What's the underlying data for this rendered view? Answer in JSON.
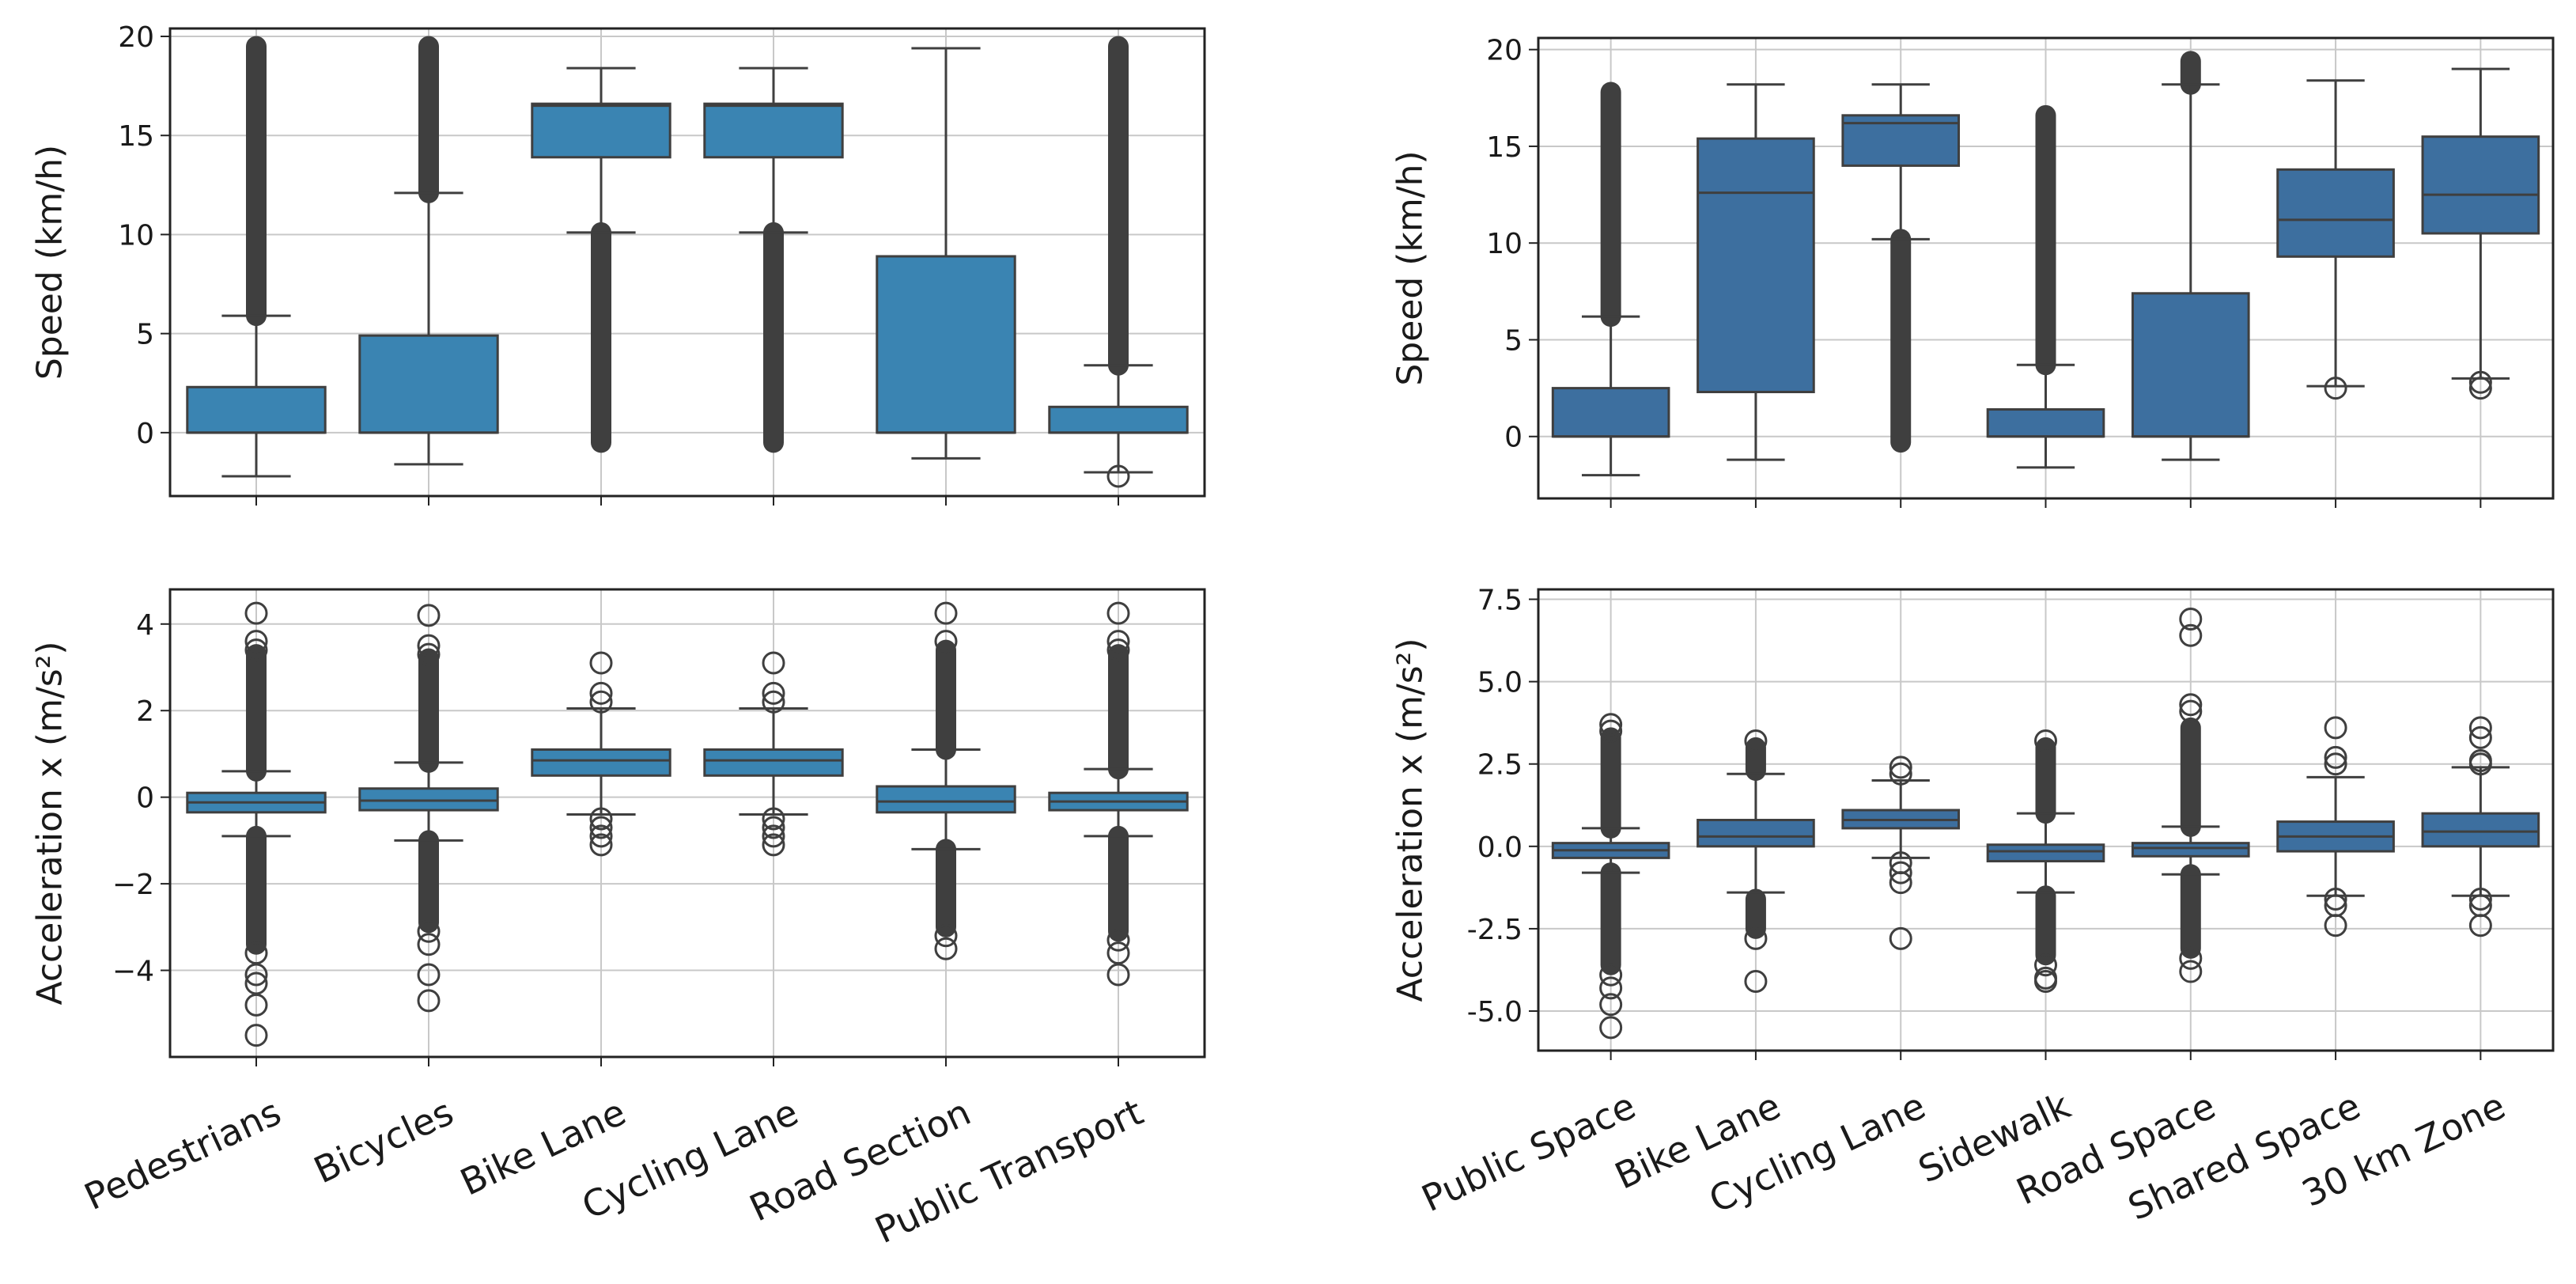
{
  "figure": {
    "box_color_left": "#3a84b2",
    "box_color_right": "#3d6f9f",
    "line_color": "#3f3f3f",
    "grid_color": "#c8c8c8"
  },
  "chart_data": [
    {
      "id": "speed-left",
      "type": "box",
      "ylabel": "Speed (km/h)",
      "ylim": [
        -3.2,
        20.4
      ],
      "yticks": [
        0,
        5,
        10,
        15,
        20
      ],
      "ytick_labels": [
        "0",
        "5",
        "10",
        "15",
        "20"
      ],
      "grid": true,
      "categories": [
        "Pedestrians",
        "Bicycles",
        "Bike Lane",
        "Cycling Lane",
        "Road Section",
        "Public Transport"
      ],
      "boxes": [
        {
          "q1": 0,
          "median": 0,
          "q3": 2.3,
          "whisker_low": -2.2,
          "whisker_high": 5.9,
          "fliers": [],
          "flier_bands": [
            [
              5.9,
              19.5
            ]
          ]
        },
        {
          "q1": 0,
          "median": 0,
          "q3": 4.9,
          "whisker_low": -1.6,
          "whisker_high": 12.1,
          "fliers": [],
          "flier_bands": [
            [
              12.1,
              19.5
            ]
          ]
        },
        {
          "q1": 13.9,
          "median": 16.5,
          "q3": 16.6,
          "whisker_low": 10.1,
          "whisker_high": 18.4,
          "fliers": [],
          "flier_bands": [
            [
              -0.5,
              10.1
            ]
          ]
        },
        {
          "q1": 13.9,
          "median": 16.5,
          "q3": 16.6,
          "whisker_low": 10.1,
          "whisker_high": 18.4,
          "fliers": [],
          "flier_bands": [
            [
              -0.5,
              10.1
            ]
          ]
        },
        {
          "q1": 0,
          "median": 0,
          "q3": 8.9,
          "whisker_low": -1.3,
          "whisker_high": 19.4,
          "fliers": [],
          "flier_bands": []
        },
        {
          "q1": 0,
          "median": 0,
          "q3": 1.3,
          "whisker_low": -2.0,
          "whisker_high": 3.4,
          "fliers": [
            -2.2
          ],
          "flier_bands": [
            [
              3.4,
              19.5
            ]
          ]
        }
      ]
    },
    {
      "id": "accel-left",
      "type": "box",
      "ylabel": "Acceleration x (m/s²)",
      "ylim": [
        -6.0,
        4.8
      ],
      "yticks": [
        -4,
        -2,
        0,
        2,
        4
      ],
      "ytick_labels": [
        "−4",
        "−2",
        "0",
        "2",
        "4"
      ],
      "grid": true,
      "categories": [
        "Pedestrians",
        "Bicycles",
        "Bike Lane",
        "Cycling Lane",
        "Road Section",
        "Public Transport"
      ],
      "boxes": [
        {
          "q1": -0.35,
          "median": -0.12,
          "q3": 0.1,
          "whisker_low": -0.9,
          "whisker_high": 0.6,
          "fliers": [
            4.25,
            3.6,
            3.4,
            -3.6,
            -4.1,
            -4.3,
            -4.8,
            -5.5
          ],
          "flier_bands": [
            [
              0.6,
              3.3
            ],
            [
              -0.9,
              -3.4
            ]
          ]
        },
        {
          "q1": -0.3,
          "median": -0.08,
          "q3": 0.2,
          "whisker_low": -1.0,
          "whisker_high": 0.8,
          "fliers": [
            4.2,
            3.5,
            3.3,
            -3.1,
            -3.4,
            -4.1,
            -4.7
          ],
          "flier_bands": [
            [
              0.8,
              3.2
            ],
            [
              -1.0,
              -2.9
            ]
          ]
        },
        {
          "q1": 0.5,
          "median": 0.85,
          "q3": 1.1,
          "whisker_low": -0.4,
          "whisker_high": 2.05,
          "fliers": [
            3.1,
            2.4,
            2.2,
            -0.5,
            -0.7,
            -0.9,
            -1.1
          ],
          "flier_bands": []
        },
        {
          "q1": 0.5,
          "median": 0.85,
          "q3": 1.1,
          "whisker_low": -0.4,
          "whisker_high": 2.05,
          "fliers": [
            3.1,
            2.4,
            2.2,
            -0.5,
            -0.7,
            -0.9,
            -1.1
          ],
          "flier_bands": []
        },
        {
          "q1": -0.35,
          "median": -0.1,
          "q3": 0.25,
          "whisker_low": -1.2,
          "whisker_high": 1.1,
          "fliers": [
            4.25,
            3.6,
            -3.2,
            -3.5
          ],
          "flier_bands": [
            [
              1.1,
              3.4
            ],
            [
              -1.2,
              -3.0
            ]
          ]
        },
        {
          "q1": -0.3,
          "median": -0.1,
          "q3": 0.1,
          "whisker_low": -0.9,
          "whisker_high": 0.65,
          "fliers": [
            4.25,
            3.6,
            3.4,
            -3.3,
            -3.6,
            -4.1
          ],
          "flier_bands": [
            [
              0.65,
              3.3
            ],
            [
              -0.9,
              -3.1
            ]
          ]
        }
      ]
    },
    {
      "id": "speed-right",
      "type": "box",
      "ylabel": "Speed (km/h)",
      "ylim": [
        -3.2,
        20.6
      ],
      "yticks": [
        0,
        5,
        10,
        15,
        20
      ],
      "ytick_labels": [
        "0",
        "5",
        "10",
        "15",
        "20"
      ],
      "grid": true,
      "categories": [
        "Public Space",
        "Bike Lane",
        "Cycling Lane",
        "Sidewalk",
        "Road Space",
        "Shared Space",
        "30 km Zone"
      ],
      "boxes": [
        {
          "q1": 0,
          "median": 0,
          "q3": 2.5,
          "whisker_low": -2.0,
          "whisker_high": 6.2,
          "fliers": [],
          "flier_bands": [
            [
              6.2,
              17.8
            ]
          ]
        },
        {
          "q1": 2.3,
          "median": 12.6,
          "q3": 15.4,
          "whisker_low": -1.2,
          "whisker_high": 18.2,
          "fliers": [],
          "flier_bands": []
        },
        {
          "q1": 14.0,
          "median": 16.2,
          "q3": 16.6,
          "whisker_low": 10.2,
          "whisker_high": 18.2,
          "fliers": [],
          "flier_bands": [
            [
              -0.3,
              10.2
            ]
          ]
        },
        {
          "q1": 0,
          "median": 0,
          "q3": 1.4,
          "whisker_low": -1.6,
          "whisker_high": 3.7,
          "fliers": [],
          "flier_bands": [
            [
              3.7,
              16.6
            ]
          ]
        },
        {
          "q1": 0,
          "median": 0,
          "q3": 7.4,
          "whisker_low": -1.2,
          "whisker_high": 18.2,
          "fliers": [],
          "flier_bands": [
            [
              18.2,
              19.4
            ]
          ]
        },
        {
          "q1": 9.3,
          "median": 11.2,
          "q3": 13.8,
          "whisker_low": 2.6,
          "whisker_high": 18.4,
          "fliers": [
            2.5
          ],
          "flier_bands": []
        },
        {
          "q1": 10.5,
          "median": 12.5,
          "q3": 15.5,
          "whisker_low": 3.0,
          "whisker_high": 19.0,
          "fliers": [
            2.8,
            2.5
          ],
          "flier_bands": []
        }
      ]
    },
    {
      "id": "accel-right",
      "type": "box",
      "ylabel": "Acceleration x (m/s²)",
      "ylim": [
        -6.2,
        7.8
      ],
      "yticks": [
        -5,
        -2.5,
        0,
        2.5,
        5,
        7.5
      ],
      "ytick_labels": [
        "-5.0",
        "-2.5",
        "0.0",
        "2.5",
        "5.0",
        "7.5"
      ],
      "grid": true,
      "categories": [
        "Public Space",
        "Bike Lane",
        "Cycling Lane",
        "Sidewalk",
        "Road Space",
        "Shared Space",
        "30 km Zone"
      ],
      "boxes": [
        {
          "q1": -0.35,
          "median": -0.12,
          "q3": 0.1,
          "whisker_low": -0.8,
          "whisker_high": 0.55,
          "fliers": [
            3.7,
            3.5,
            -3.9,
            -4.3,
            -4.8,
            -5.5
          ],
          "flier_bands": [
            [
              0.55,
              3.3
            ],
            [
              -0.8,
              -3.6
            ]
          ]
        },
        {
          "q1": 0,
          "median": 0.3,
          "q3": 0.8,
          "whisker_low": -1.4,
          "whisker_high": 2.2,
          "fliers": [
            3.2,
            -2.8,
            -4.1
          ],
          "flier_bands": [
            [
              2.3,
              3.0
            ],
            [
              -1.6,
              -2.5
            ]
          ]
        },
        {
          "q1": 0.55,
          "median": 0.8,
          "q3": 1.1,
          "whisker_low": -0.35,
          "whisker_high": 2.0,
          "fliers": [
            2.4,
            2.2,
            -0.5,
            -0.8,
            -1.1,
            -2.8
          ],
          "flier_bands": []
        },
        {
          "q1": -0.45,
          "median": -0.15,
          "q3": 0.05,
          "whisker_low": -1.4,
          "whisker_high": 1.0,
          "fliers": [
            3.2,
            -3.6,
            -4.0,
            -4.1
          ],
          "flier_bands": [
            [
              1.0,
              3.0
            ],
            [
              -1.5,
              -3.3
            ]
          ]
        },
        {
          "q1": -0.3,
          "median": -0.05,
          "q3": 0.1,
          "whisker_low": -0.85,
          "whisker_high": 0.6,
          "fliers": [
            6.9,
            6.4,
            4.3,
            4.1,
            -3.4,
            -3.8
          ],
          "flier_bands": [
            [
              0.6,
              3.6
            ],
            [
              -0.85,
              -3.1
            ]
          ]
        },
        {
          "q1": -0.15,
          "median": 0.3,
          "q3": 0.75,
          "whisker_low": -1.5,
          "whisker_high": 2.1,
          "fliers": [
            3.6,
            2.7,
            2.5,
            -1.6,
            -1.8,
            -2.4
          ],
          "flier_bands": []
        },
        {
          "q1": 0,
          "median": 0.45,
          "q3": 1.0,
          "whisker_low": -1.5,
          "whisker_high": 2.4,
          "fliers": [
            3.6,
            3.3,
            2.6,
            2.5,
            -1.6,
            -1.8,
            -2.4
          ],
          "flier_bands": []
        }
      ]
    }
  ]
}
